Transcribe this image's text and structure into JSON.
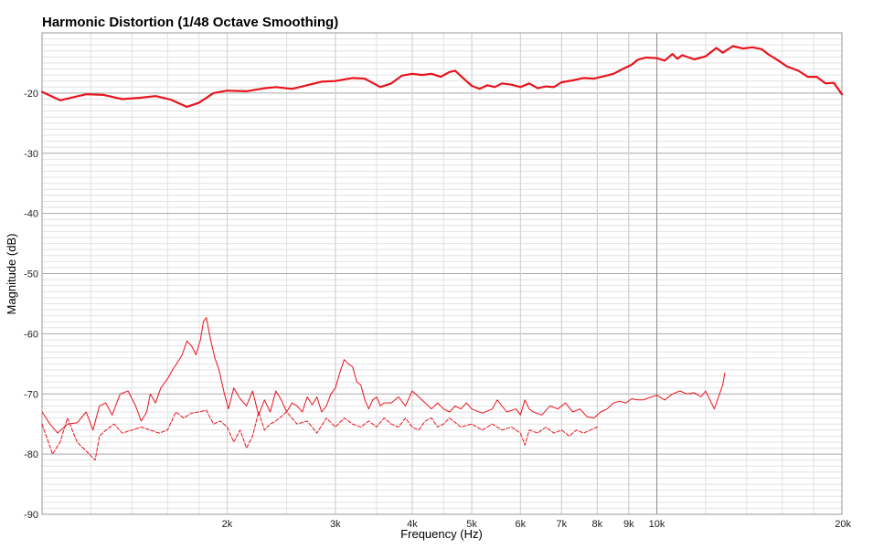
{
  "chart_data": {
    "type": "line",
    "title": "Harmonic Distortion (1/48 Octave Smoothing)",
    "xlabel": "Frequency (Hz)",
    "ylabel": "Magnitude (dB)",
    "xscale": "log",
    "xlim": [
      1000,
      20000
    ],
    "ylim": [
      -90,
      -10
    ],
    "grid": true,
    "x_ticks": [
      {
        "value": 2000,
        "label": "2k"
      },
      {
        "value": 3000,
        "label": "3k"
      },
      {
        "value": 4000,
        "label": "4k"
      },
      {
        "value": 5000,
        "label": "5k"
      },
      {
        "value": 6000,
        "label": "6k"
      },
      {
        "value": 7000,
        "label": "7k"
      },
      {
        "value": 8000,
        "label": "8k"
      },
      {
        "value": 9000,
        "label": "9k"
      },
      {
        "value": 10000,
        "label": "10k"
      },
      {
        "value": 20000,
        "label": "20k"
      }
    ],
    "y_ticks": [
      {
        "value": -20,
        "label": "-20"
      },
      {
        "value": -30,
        "label": "-30"
      },
      {
        "value": -40,
        "label": "-40"
      },
      {
        "value": -50,
        "label": "-50"
      },
      {
        "value": -60,
        "label": "-60"
      },
      {
        "value": -70,
        "label": "-70"
      },
      {
        "value": -80,
        "label": "-80"
      },
      {
        "value": -90,
        "label": "-90"
      }
    ],
    "series": [
      {
        "style": "thick",
        "color": "#e8141e",
        "points": [
          [
            1000,
            -19.8
          ],
          [
            1070,
            -21.2
          ],
          [
            1180,
            -20.2
          ],
          [
            1260,
            -20.3
          ],
          [
            1350,
            -21
          ],
          [
            1440,
            -20.8
          ],
          [
            1530,
            -20.5
          ],
          [
            1620,
            -21.1
          ],
          [
            1720,
            -22.3
          ],
          [
            1800,
            -21.6
          ],
          [
            1900,
            -20
          ],
          [
            2000,
            -19.6
          ],
          [
            2150,
            -19.7
          ],
          [
            2300,
            -19.2
          ],
          [
            2400,
            -19
          ],
          [
            2550,
            -19.3
          ],
          [
            2700,
            -18.7
          ],
          [
            2850,
            -18.1
          ],
          [
            3000,
            -18
          ],
          [
            3200,
            -17.5
          ],
          [
            3350,
            -17.6
          ],
          [
            3550,
            -19
          ],
          [
            3700,
            -18.4
          ],
          [
            3850,
            -17.1
          ],
          [
            4000,
            -16.8
          ],
          [
            4150,
            -17
          ],
          [
            4300,
            -16.8
          ],
          [
            4450,
            -17.3
          ],
          [
            4600,
            -16.5
          ],
          [
            4700,
            -16.3
          ],
          [
            4850,
            -17.6
          ],
          [
            5000,
            -18.8
          ],
          [
            5150,
            -19.3
          ],
          [
            5300,
            -18.7
          ],
          [
            5450,
            -19
          ],
          [
            5600,
            -18.4
          ],
          [
            5800,
            -18.6
          ],
          [
            6000,
            -19
          ],
          [
            6200,
            -18.4
          ],
          [
            6400,
            -19.2
          ],
          [
            6600,
            -18.9
          ],
          [
            6800,
            -19
          ],
          [
            7000,
            -18.2
          ],
          [
            7300,
            -17.9
          ],
          [
            7600,
            -17.5
          ],
          [
            7900,
            -17.6
          ],
          [
            8200,
            -17.2
          ],
          [
            8500,
            -16.8
          ],
          [
            8800,
            -16
          ],
          [
            9100,
            -15.3
          ],
          [
            9300,
            -14.5
          ],
          [
            9600,
            -14.1
          ],
          [
            10000,
            -14.2
          ],
          [
            10300,
            -14.6
          ],
          [
            10600,
            -13.5
          ],
          [
            10800,
            -14.3
          ],
          [
            11000,
            -13.7
          ],
          [
            11500,
            -14.4
          ],
          [
            12000,
            -13.9
          ],
          [
            12500,
            -12.5
          ],
          [
            12800,
            -13.3
          ],
          [
            13300,
            -12.2
          ],
          [
            13800,
            -12.6
          ],
          [
            14300,
            -12.4
          ],
          [
            14800,
            -12.7
          ],
          [
            15200,
            -13.6
          ],
          [
            15700,
            -14.5
          ],
          [
            16300,
            -15.6
          ],
          [
            17000,
            -16.3
          ],
          [
            17600,
            -17.3
          ],
          [
            18200,
            -17.3
          ],
          [
            18800,
            -18.4
          ],
          [
            19400,
            -18.3
          ],
          [
            20000,
            -20.2
          ]
        ]
      },
      {
        "style": "thin",
        "color": "#e8141e",
        "points": [
          [
            1000,
            -73
          ],
          [
            1030,
            -75
          ],
          [
            1060,
            -76.5
          ],
          [
            1100,
            -75
          ],
          [
            1140,
            -74.8
          ],
          [
            1180,
            -73
          ],
          [
            1210,
            -76
          ],
          [
            1240,
            -72
          ],
          [
            1270,
            -71.5
          ],
          [
            1300,
            -73.5
          ],
          [
            1340,
            -70
          ],
          [
            1380,
            -69.5
          ],
          [
            1420,
            -72
          ],
          [
            1450,
            -74.5
          ],
          [
            1480,
            -73
          ],
          [
            1500,
            -70
          ],
          [
            1530,
            -71.5
          ],
          [
            1560,
            -69
          ],
          [
            1600,
            -67.5
          ],
          [
            1630,
            -66
          ],
          [
            1660,
            -64.8
          ],
          [
            1690,
            -63.5
          ],
          [
            1720,
            -61.2
          ],
          [
            1750,
            -62
          ],
          [
            1780,
            -63.5
          ],
          [
            1810,
            -61
          ],
          [
            1830,
            -58
          ],
          [
            1850,
            -57.3
          ],
          [
            1880,
            -61
          ],
          [
            1910,
            -64
          ],
          [
            1940,
            -66
          ],
          [
            1980,
            -70
          ],
          [
            2010,
            -72.5
          ],
          [
            2050,
            -69
          ],
          [
            2100,
            -70.8
          ],
          [
            2150,
            -72
          ],
          [
            2200,
            -69.5
          ],
          [
            2250,
            -73.5
          ],
          [
            2300,
            -71
          ],
          [
            2350,
            -73
          ],
          [
            2400,
            -69.5
          ],
          [
            2450,
            -71
          ],
          [
            2500,
            -73
          ],
          [
            2550,
            -71.5
          ],
          [
            2600,
            -72
          ],
          [
            2650,
            -73
          ],
          [
            2700,
            -70.5
          ],
          [
            2750,
            -71.8
          ],
          [
            2800,
            -70.5
          ],
          [
            2850,
            -73
          ],
          [
            2900,
            -72
          ],
          [
            2950,
            -70
          ],
          [
            3000,
            -69
          ],
          [
            3050,
            -66.5
          ],
          [
            3100,
            -64.3
          ],
          [
            3150,
            -65
          ],
          [
            3200,
            -65.5
          ],
          [
            3250,
            -68
          ],
          [
            3300,
            -68.5
          ],
          [
            3350,
            -71
          ],
          [
            3400,
            -72.5
          ],
          [
            3450,
            -71
          ],
          [
            3500,
            -70.5
          ],
          [
            3550,
            -72
          ],
          [
            3600,
            -71.5
          ],
          [
            3700,
            -71.5
          ],
          [
            3800,
            -70.5
          ],
          [
            3900,
            -72
          ],
          [
            4000,
            -69.5
          ],
          [
            4100,
            -70.5
          ],
          [
            4200,
            -71.5
          ],
          [
            4300,
            -72.5
          ],
          [
            4400,
            -71.5
          ],
          [
            4500,
            -72.5
          ],
          [
            4600,
            -73
          ],
          [
            4700,
            -72
          ],
          [
            4800,
            -72.5
          ],
          [
            4900,
            -71.5
          ],
          [
            5000,
            -72.5
          ],
          [
            5200,
            -73.2
          ],
          [
            5400,
            -72.5
          ],
          [
            5500,
            -71
          ],
          [
            5700,
            -73
          ],
          [
            5900,
            -72.5
          ],
          [
            6000,
            -73.5
          ],
          [
            6100,
            -71
          ],
          [
            6200,
            -72.5
          ],
          [
            6300,
            -73
          ],
          [
            6500,
            -73.5
          ],
          [
            6700,
            -72
          ],
          [
            6900,
            -72.5
          ],
          [
            7100,
            -71.5
          ],
          [
            7300,
            -73
          ],
          [
            7500,
            -72.5
          ],
          [
            7700,
            -73.8
          ],
          [
            7900,
            -74
          ],
          [
            8100,
            -73
          ],
          [
            8300,
            -72.5
          ],
          [
            8500,
            -71.5
          ],
          [
            8700,
            -71.2
          ],
          [
            8900,
            -71.5
          ],
          [
            9100,
            -70.8
          ],
          [
            9300,
            -71
          ],
          [
            9500,
            -71
          ],
          [
            9800,
            -70.5
          ],
          [
            10000,
            -70.2
          ],
          [
            10300,
            -71
          ],
          [
            10600,
            -70
          ],
          [
            10900,
            -69.5
          ],
          [
            11200,
            -70
          ],
          [
            11500,
            -69.8
          ],
          [
            11800,
            -70.5
          ],
          [
            12000,
            -69.5
          ],
          [
            12200,
            -71
          ],
          [
            12400,
            -72.5
          ],
          [
            12600,
            -70.5
          ],
          [
            12800,
            -68.5
          ],
          [
            12900,
            -66.5
          ]
        ]
      },
      {
        "style": "thin-dashed",
        "color": "#e8141e",
        "points": [
          [
            1000,
            -75
          ],
          [
            1040,
            -80
          ],
          [
            1070,
            -78
          ],
          [
            1100,
            -74
          ],
          [
            1140,
            -78
          ],
          [
            1180,
            -79.5
          ],
          [
            1220,
            -81
          ],
          [
            1240,
            -77
          ],
          [
            1270,
            -76
          ],
          [
            1310,
            -75
          ],
          [
            1350,
            -76.5
          ],
          [
            1400,
            -76
          ],
          [
            1450,
            -75.5
          ],
          [
            1500,
            -76
          ],
          [
            1550,
            -76.5
          ],
          [
            1600,
            -76
          ],
          [
            1650,
            -73
          ],
          [
            1700,
            -74
          ],
          [
            1750,
            -73.2
          ],
          [
            1800,
            -73
          ],
          [
            1850,
            -72.7
          ],
          [
            1900,
            -75
          ],
          [
            1950,
            -74.5
          ],
          [
            2000,
            -75.5
          ],
          [
            2050,
            -78
          ],
          [
            2100,
            -76
          ],
          [
            2150,
            -79
          ],
          [
            2200,
            -77
          ],
          [
            2250,
            -73
          ],
          [
            2300,
            -76
          ],
          [
            2350,
            -75
          ],
          [
            2400,
            -74.5
          ],
          [
            2500,
            -73
          ],
          [
            2600,
            -75
          ],
          [
            2700,
            -74.5
          ],
          [
            2800,
            -76.5
          ],
          [
            2900,
            -74
          ],
          [
            3000,
            -75.5
          ],
          [
            3100,
            -74
          ],
          [
            3200,
            -75
          ],
          [
            3300,
            -75.5
          ],
          [
            3400,
            -74.5
          ],
          [
            3500,
            -75.5
          ],
          [
            3600,
            -74
          ],
          [
            3700,
            -75
          ],
          [
            3800,
            -75.5
          ],
          [
            3900,
            -74
          ],
          [
            4000,
            -75.5
          ],
          [
            4100,
            -76
          ],
          [
            4200,
            -74.5
          ],
          [
            4300,
            -74
          ],
          [
            4400,
            -75.5
          ],
          [
            4500,
            -75
          ],
          [
            4600,
            -74
          ],
          [
            4800,
            -75.5
          ],
          [
            5000,
            -75
          ],
          [
            5200,
            -76
          ],
          [
            5400,
            -75
          ],
          [
            5600,
            -76
          ],
          [
            5800,
            -75.5
          ],
          [
            6000,
            -76.5
          ],
          [
            6100,
            -78.5
          ],
          [
            6200,
            -76
          ],
          [
            6400,
            -76.5
          ],
          [
            6600,
            -75.5
          ],
          [
            6800,
            -76.5
          ],
          [
            7000,
            -76
          ],
          [
            7200,
            -77
          ],
          [
            7400,
            -76
          ],
          [
            7600,
            -76.5
          ],
          [
            7800,
            -76
          ],
          [
            8000,
            -75.5
          ]
        ]
      }
    ]
  }
}
